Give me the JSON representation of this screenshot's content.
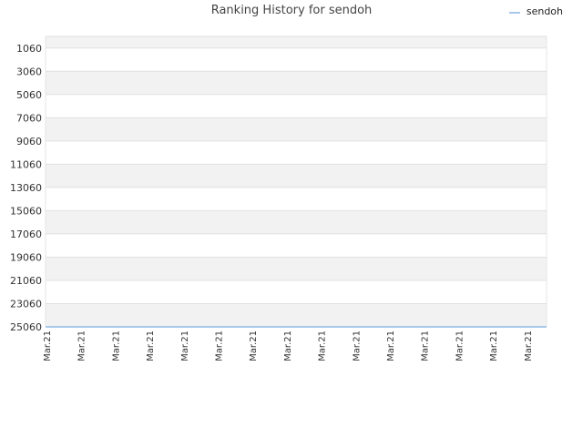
{
  "chart_data": {
    "type": "line",
    "title": "Ranking History for sendoh",
    "xlabel": "",
    "ylabel": "",
    "y_reversed": true,
    "ylim": [
      25060,
      60
    ],
    "y_ticks": [
      "1060",
      "3060",
      "5060",
      "7060",
      "9060",
      "11060",
      "13060",
      "15060",
      "17060",
      "19060",
      "21060",
      "23060",
      "25060"
    ],
    "x_ticks": [
      "Mar.21",
      "Mar.21",
      "Mar.21",
      "Mar.21",
      "Mar.21",
      "Mar.21",
      "Mar.21",
      "Mar.21",
      "Mar.21",
      "Mar.21",
      "Mar.21",
      "Mar.21",
      "Mar.21",
      "Mar.21",
      "Mar.21"
    ],
    "grid": true,
    "legend_position": "top-right",
    "series": [
      {
        "name": "sendoh",
        "color": "#a9c8e8",
        "values": [
          25060,
          25060,
          25060,
          25060,
          25060,
          25060,
          25060,
          25060,
          25060,
          25060,
          25060,
          25060,
          25060,
          25060,
          25060
        ]
      }
    ],
    "band_colors": [
      "#f2f2f2",
      "#ffffff"
    ]
  }
}
